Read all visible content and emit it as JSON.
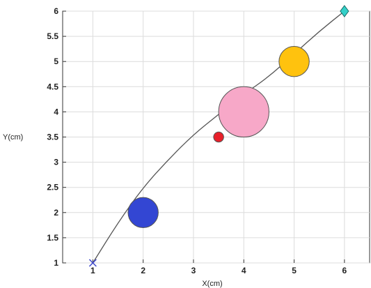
{
  "chart_data": {
    "type": "scatter",
    "title": "",
    "xlabel": "X(cm)",
    "ylabel": "Y(cm)",
    "xlim": [
      0.4,
      6.5
    ],
    "ylim": [
      1,
      6
    ],
    "grid": true,
    "x_ticks": [
      1,
      2,
      3,
      4,
      5,
      6
    ],
    "y_ticks": [
      1,
      1.5,
      2,
      2.5,
      3,
      3.5,
      4,
      4.5,
      5,
      5.5,
      6
    ],
    "curve": {
      "color": "#555555",
      "points": [
        [
          1,
          1
        ],
        [
          1.5,
          1.8
        ],
        [
          2,
          2.5
        ],
        [
          2.5,
          3.05
        ],
        [
          3,
          3.55
        ],
        [
          3.5,
          3.95
        ],
        [
          4,
          4.35
        ],
        [
          4.5,
          4.7
        ],
        [
          5,
          5.15
        ],
        [
          5.5,
          5.6
        ],
        [
          6,
          6
        ]
      ]
    },
    "start_marker": {
      "x": 1,
      "y": 1,
      "shape": "x",
      "color": "#3f48cc"
    },
    "end_marker": {
      "x": 6,
      "y": 6,
      "shape": "diamond",
      "color": "#33d0c8"
    },
    "circles": [
      {
        "x": 2,
        "y": 2,
        "radius": 0.3,
        "color": "#3346d3"
      },
      {
        "x": 3.5,
        "y": 3.5,
        "radius": 0.1,
        "color": "#e8202a"
      },
      {
        "x": 4,
        "y": 4,
        "radius": 0.5,
        "color": "#f7a8c8"
      },
      {
        "x": 5,
        "y": 5,
        "radius": 0.3,
        "color": "#ffc20e"
      }
    ]
  }
}
